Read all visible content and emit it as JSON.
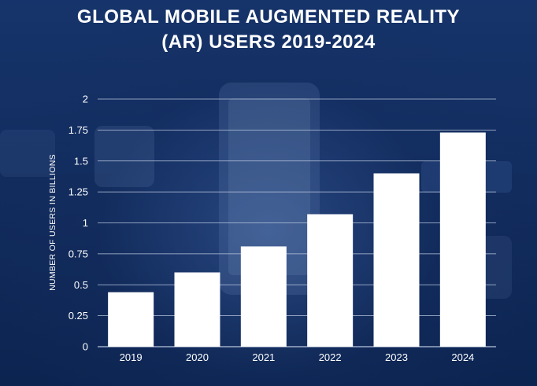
{
  "title_line1": "GLOBAL MOBILE AUGMENTED REALITY",
  "title_line2": "(AR) USERS 2019-2024",
  "chart_data": {
    "type": "bar",
    "title": "GLOBAL MOBILE AUGMENTED REALITY (AR) USERS 2019-2024",
    "xlabel": "",
    "ylabel": "NUMBER OF USERS IN BILLIONS",
    "categories": [
      "2019",
      "2020",
      "2021",
      "2022",
      "2023",
      "2024"
    ],
    "values": [
      0.44,
      0.6,
      0.81,
      1.07,
      1.4,
      1.73
    ],
    "yticks": [
      "0",
      "0.25",
      "0.5",
      "0.75",
      "1",
      "1.25",
      "1.5",
      "1.75",
      "2"
    ],
    "ylim": [
      0,
      2
    ],
    "grid": true,
    "colors": {
      "bar": "#ffffff",
      "grid": "#b9c6dd",
      "text": "#ffffff"
    }
  }
}
